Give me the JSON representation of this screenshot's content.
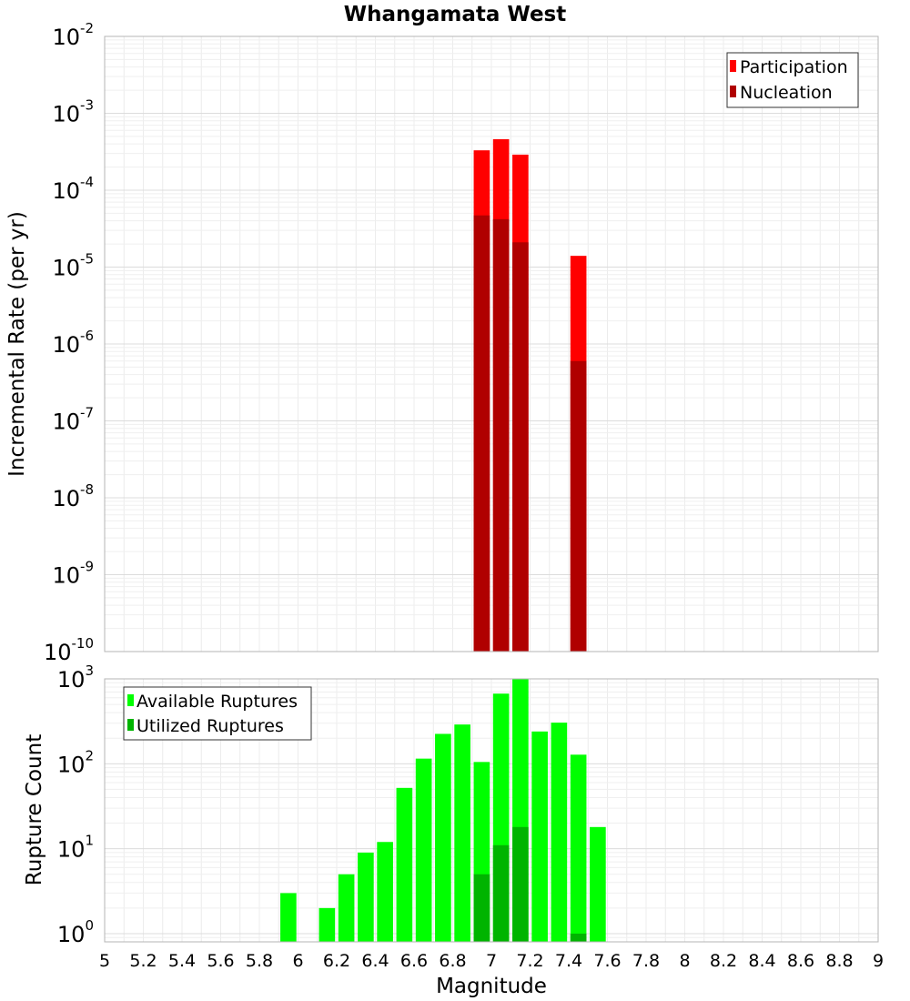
{
  "chart_data": [
    {
      "type": "bar",
      "title": "Whangamata West",
      "xlabel": "",
      "ylabel": "Incremental Rate (per yr)",
      "yscale": "log",
      "ylim": [
        1e-10,
        0.01
      ],
      "xlim": [
        5,
        9
      ],
      "grid": true,
      "legend_position": "top-right",
      "x_ticks_shown": false,
      "y_tick_labels": [
        {
          "base": "10",
          "exp": "-10",
          "value": 1e-10
        },
        {
          "base": "10",
          "exp": "-9",
          "value": 1e-09
        },
        {
          "base": "10",
          "exp": "-8",
          "value": 1e-08
        },
        {
          "base": "10",
          "exp": "-7",
          "value": 1e-07
        },
        {
          "base": "10",
          "exp": "-6",
          "value": 1e-06
        },
        {
          "base": "10",
          "exp": "-5",
          "value": 1e-05
        },
        {
          "base": "10",
          "exp": "-4",
          "value": 0.0001
        },
        {
          "base": "10",
          "exp": "-3",
          "value": 0.001
        },
        {
          "base": "10",
          "exp": "-2",
          "value": 0.01
        }
      ],
      "series": [
        {
          "name": "Participation",
          "color": "#ff0000",
          "points": [
            {
              "x": 6.95,
              "y": 0.00033
            },
            {
              "x": 7.05,
              "y": 0.00046
            },
            {
              "x": 7.15,
              "y": 0.00029
            },
            {
              "x": 7.45,
              "y": 1.4e-05
            }
          ]
        },
        {
          "name": "Nucleation",
          "color": "#b00000",
          "points": [
            {
              "x": 6.95,
              "y": 4.7e-05
            },
            {
              "x": 7.05,
              "y": 4.2e-05
            },
            {
              "x": 7.15,
              "y": 2.1e-05
            },
            {
              "x": 7.45,
              "y": 6e-07
            }
          ]
        }
      ]
    },
    {
      "type": "bar",
      "title": "",
      "xlabel": "Magnitude",
      "ylabel": "Rupture Count",
      "yscale": "log",
      "ylim": [
        0.8,
        1000
      ],
      "xlim": [
        5,
        9
      ],
      "grid": true,
      "legend_position": "top-left",
      "x_tick_labels": [
        "5",
        "5.2",
        "5.4",
        "5.6",
        "5.8",
        "6",
        "6.2",
        "6.4",
        "6.6",
        "6.8",
        "7",
        "7.2",
        "7.4",
        "7.6",
        "7.8",
        "8",
        "8.2",
        "8.4",
        "8.6",
        "8.8",
        "9"
      ],
      "x_tick_values": [
        5,
        5.2,
        5.4,
        5.6,
        5.8,
        6,
        6.2,
        6.4,
        6.6,
        6.8,
        7,
        7.2,
        7.4,
        7.6,
        7.8,
        8,
        8.2,
        8.4,
        8.6,
        8.8,
        9
      ],
      "y_tick_labels": [
        {
          "base": "10",
          "exp": "0",
          "value": 1
        },
        {
          "base": "10",
          "exp": "1",
          "value": 10
        },
        {
          "base": "10",
          "exp": "2",
          "value": 100
        },
        {
          "base": "10",
          "exp": "3",
          "value": 1000
        }
      ],
      "series": [
        {
          "name": "Available Ruptures",
          "color": "#00ff00",
          "points": [
            {
              "x": 5.95,
              "y": 3
            },
            {
              "x": 6.15,
              "y": 2
            },
            {
              "x": 6.25,
              "y": 5
            },
            {
              "x": 6.35,
              "y": 9
            },
            {
              "x": 6.45,
              "y": 12
            },
            {
              "x": 6.55,
              "y": 52
            },
            {
              "x": 6.65,
              "y": 115
            },
            {
              "x": 6.75,
              "y": 225
            },
            {
              "x": 6.85,
              "y": 290
            },
            {
              "x": 6.95,
              "y": 105
            },
            {
              "x": 7.05,
              "y": 670
            },
            {
              "x": 7.15,
              "y": 1000
            },
            {
              "x": 7.25,
              "y": 240
            },
            {
              "x": 7.35,
              "y": 305
            },
            {
              "x": 7.45,
              "y": 128
            },
            {
              "x": 7.55,
              "y": 18
            }
          ]
        },
        {
          "name": "Utilized Ruptures",
          "color": "#00b400",
          "points": [
            {
              "x": 6.95,
              "y": 5
            },
            {
              "x": 7.05,
              "y": 11
            },
            {
              "x": 7.15,
              "y": 18
            },
            {
              "x": 7.45,
              "y": 1
            }
          ]
        }
      ]
    }
  ]
}
